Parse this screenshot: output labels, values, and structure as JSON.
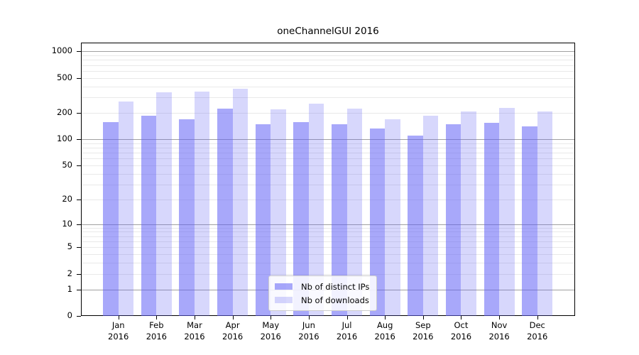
{
  "chart_data": {
    "type": "bar",
    "title": "oneChannelGUI 2016",
    "categories": [
      "Jan 2016",
      "Feb 2016",
      "Mar 2016",
      "Apr 2016",
      "May 2016",
      "Jun 2016",
      "Jul 2016",
      "Aug 2016",
      "Sep 2016",
      "Oct 2016",
      "Nov 2016",
      "Dec 2016"
    ],
    "series": [
      {
        "name": "Nb of distinct IPs",
        "color": "rgba(96,96,245,0.55)",
        "values": [
          158,
          185,
          168,
          225,
          148,
          156,
          148,
          133,
          110,
          148,
          153,
          139
        ]
      },
      {
        "name": "Nb of downloads",
        "color": "rgba(96,96,245,0.25)",
        "values": [
          270,
          343,
          349,
          376,
          218,
          255,
          224,
          168,
          187,
          208,
          229,
          208
        ]
      }
    ],
    "xlabel": "",
    "ylabel": "",
    "yscale": "log1p",
    "ylim": [
      0,
      1000
    ],
    "yticks": [
      0,
      1,
      2,
      5,
      10,
      20,
      50,
      100,
      200,
      500,
      1000
    ],
    "grid": {
      "on": true,
      "major_color": "#a0a0a0",
      "minor_color": "#e9e9e9"
    },
    "legend_position": "lower-center",
    "frame_color": "#000000",
    "background_color": "#ffffff"
  }
}
